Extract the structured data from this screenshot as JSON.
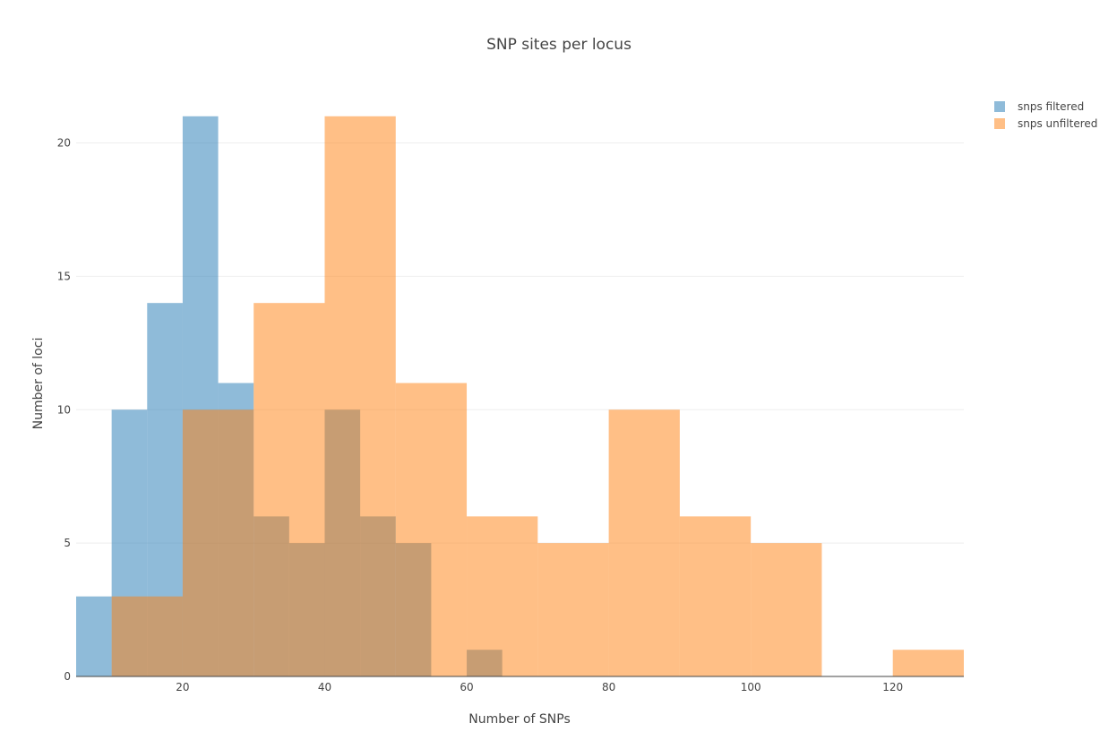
{
  "chart_data": {
    "type": "bar",
    "title": "SNP sites per locus",
    "xlabel": "Number of SNPs",
    "ylabel": "Number of loci",
    "xlim": [
      5,
      130
    ],
    "ylim": [
      0,
      22
    ],
    "x_ticks": [
      20,
      40,
      60,
      80,
      100,
      120
    ],
    "y_ticks": [
      0,
      5,
      10,
      15,
      20
    ],
    "grid": true,
    "legend_position": "top-right",
    "bin_width": 5,
    "series": [
      {
        "name": "snps filtered",
        "color": "#1f77b4",
        "bins": [
          {
            "x0": 5,
            "x1": 10,
            "count": 3
          },
          {
            "x0": 10,
            "x1": 15,
            "count": 10
          },
          {
            "x0": 15,
            "x1": 20,
            "count": 14
          },
          {
            "x0": 20,
            "x1": 25,
            "count": 21
          },
          {
            "x0": 25,
            "x1": 30,
            "count": 11
          },
          {
            "x0": 30,
            "x1": 35,
            "count": 6
          },
          {
            "x0": 35,
            "x1": 40,
            "count": 5
          },
          {
            "x0": 40,
            "x1": 45,
            "count": 10
          },
          {
            "x0": 45,
            "x1": 50,
            "count": 6
          },
          {
            "x0": 50,
            "x1": 55,
            "count": 5
          },
          {
            "x0": 60,
            "x1": 65,
            "count": 1
          }
        ]
      },
      {
        "name": "snps unfiltered",
        "color": "#ff7f0e",
        "bins": [
          {
            "x0": 10,
            "x1": 20,
            "count": 3
          },
          {
            "x0": 20,
            "x1": 30,
            "count": 10
          },
          {
            "x0": 30,
            "x1": 40,
            "count": 14
          },
          {
            "x0": 40,
            "x1": 50,
            "count": 21
          },
          {
            "x0": 50,
            "x1": 60,
            "count": 11
          },
          {
            "x0": 60,
            "x1": 70,
            "count": 6
          },
          {
            "x0": 70,
            "x1": 80,
            "count": 5
          },
          {
            "x0": 80,
            "x1": 90,
            "count": 10
          },
          {
            "x0": 90,
            "x1": 100,
            "count": 6
          },
          {
            "x0": 100,
            "x1": 110,
            "count": 5
          },
          {
            "x0": 120,
            "x1": 130,
            "count": 1
          }
        ]
      }
    ]
  }
}
